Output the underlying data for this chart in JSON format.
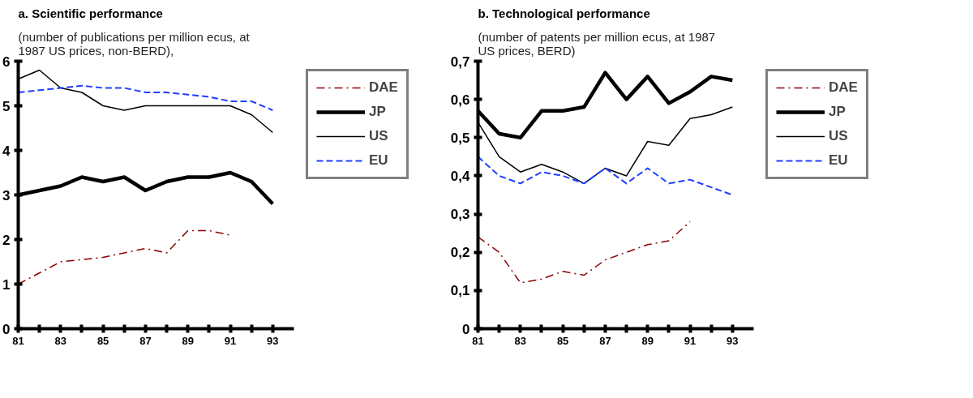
{
  "chart_data": [
    {
      "type": "line",
      "title": "a.  Scientific performance",
      "subtitle": "(number of publications per million ecus, at 1987 US prices, non-BERD),",
      "x": [
        81,
        82,
        83,
        84,
        85,
        86,
        87,
        88,
        89,
        90,
        91,
        92,
        93
      ],
      "xlim": [
        81,
        94
      ],
      "xticks": [
        81,
        {
          "value": 82,
          "label": null
        },
        83,
        {
          "value": 84,
          "label": null
        },
        85,
        {
          "value": 86,
          "label": null
        },
        87,
        {
          "value": 88,
          "label": null
        },
        89,
        {
          "value": 90,
          "label": null
        },
        91,
        {
          "value": 92,
          "label": null
        },
        93
      ],
      "ylim": [
        0,
        6
      ],
      "yticks": [
        0,
        1,
        2,
        3,
        4,
        5,
        6
      ],
      "grid": false,
      "legend": "right",
      "marker": "none",
      "series": [
        {
          "name": "DAE",
          "color": "#8b0000",
          "line_style": "dashdot",
          "values": [
            1.0,
            1.25,
            1.5,
            1.55,
            1.6,
            1.7,
            1.8,
            1.7,
            2.2,
            2.2,
            2.1,
            null,
            null
          ]
        },
        {
          "name": "JP",
          "color": "#000000",
          "line_style": "solid",
          "values": [
            3.0,
            3.1,
            3.2,
            3.4,
            3.3,
            3.4,
            3.1,
            3.3,
            3.4,
            3.4,
            3.5,
            3.3,
            2.8
          ]
        },
        {
          "name": "US",
          "color": "#000000",
          "line_style": "solid",
          "values": [
            5.6,
            5.8,
            5.4,
            5.3,
            5.0,
            4.9,
            5.0,
            5.0,
            5.0,
            5.0,
            5.0,
            4.8,
            4.4
          ]
        },
        {
          "name": "EU",
          "color": "#1f3fff",
          "line_style": "dashed",
          "values": [
            5.3,
            5.35,
            5.4,
            5.45,
            5.4,
            5.4,
            5.3,
            5.3,
            5.25,
            5.2,
            5.1,
            5.1,
            4.9
          ]
        }
      ]
    },
    {
      "type": "line",
      "title": "b.  Technological performance",
      "subtitle": "(number of patents per million ecus, at 1987 US prices, BERD)",
      "x": [
        81,
        82,
        83,
        84,
        85,
        86,
        87,
        88,
        89,
        90,
        91,
        92,
        93
      ],
      "xlim": [
        81,
        94
      ],
      "xticks": [
        81,
        {
          "value": 82,
          "label": null
        },
        83,
        {
          "value": 84,
          "label": null
        },
        85,
        {
          "value": 86,
          "label": null
        },
        87,
        {
          "value": 88,
          "label": null
        },
        89,
        {
          "value": 90,
          "label": null
        },
        91,
        {
          "value": 92,
          "label": null
        },
        93
      ],
      "ylim": [
        0,
        0.7
      ],
      "yticks": [
        0,
        {
          "value": 0.1,
          "label": "0,1"
        },
        {
          "value": 0.2,
          "label": "0,2"
        },
        {
          "value": 0.3,
          "label": "0,3"
        },
        {
          "value": 0.4,
          "label": "0,4"
        },
        {
          "value": 0.5,
          "label": "0,5"
        },
        {
          "value": 0.6,
          "label": "0,6"
        },
        {
          "value": 0.7,
          "label": "0,7"
        }
      ],
      "grid": false,
      "legend": "right",
      "marker": "none",
      "series": [
        {
          "name": "DAE",
          "color": "#8b0000",
          "line_style": "dashdot",
          "values": [
            0.24,
            0.2,
            0.12,
            0.13,
            0.15,
            0.14,
            0.18,
            0.2,
            0.22,
            0.23,
            0.28,
            null,
            null
          ]
        },
        {
          "name": "JP",
          "color": "#000000",
          "line_style": "solid",
          "values": [
            0.57,
            0.51,
            0.5,
            0.57,
            0.57,
            0.58,
            0.67,
            0.6,
            0.66,
            0.59,
            0.62,
            0.66,
            0.65
          ]
        },
        {
          "name": "US",
          "color": "#000000",
          "line_style": "solid",
          "values": [
            0.54,
            0.45,
            0.41,
            0.43,
            0.41,
            0.38,
            0.42,
            0.4,
            0.49,
            0.48,
            0.55,
            0.56,
            0.58
          ]
        },
        {
          "name": "EU",
          "color": "#1f3fff",
          "line_style": "dashed",
          "values": [
            0.45,
            0.4,
            0.38,
            0.41,
            0.4,
            0.38,
            0.42,
            0.38,
            0.42,
            0.38,
            0.39,
            0.37,
            0.35
          ]
        }
      ]
    }
  ]
}
